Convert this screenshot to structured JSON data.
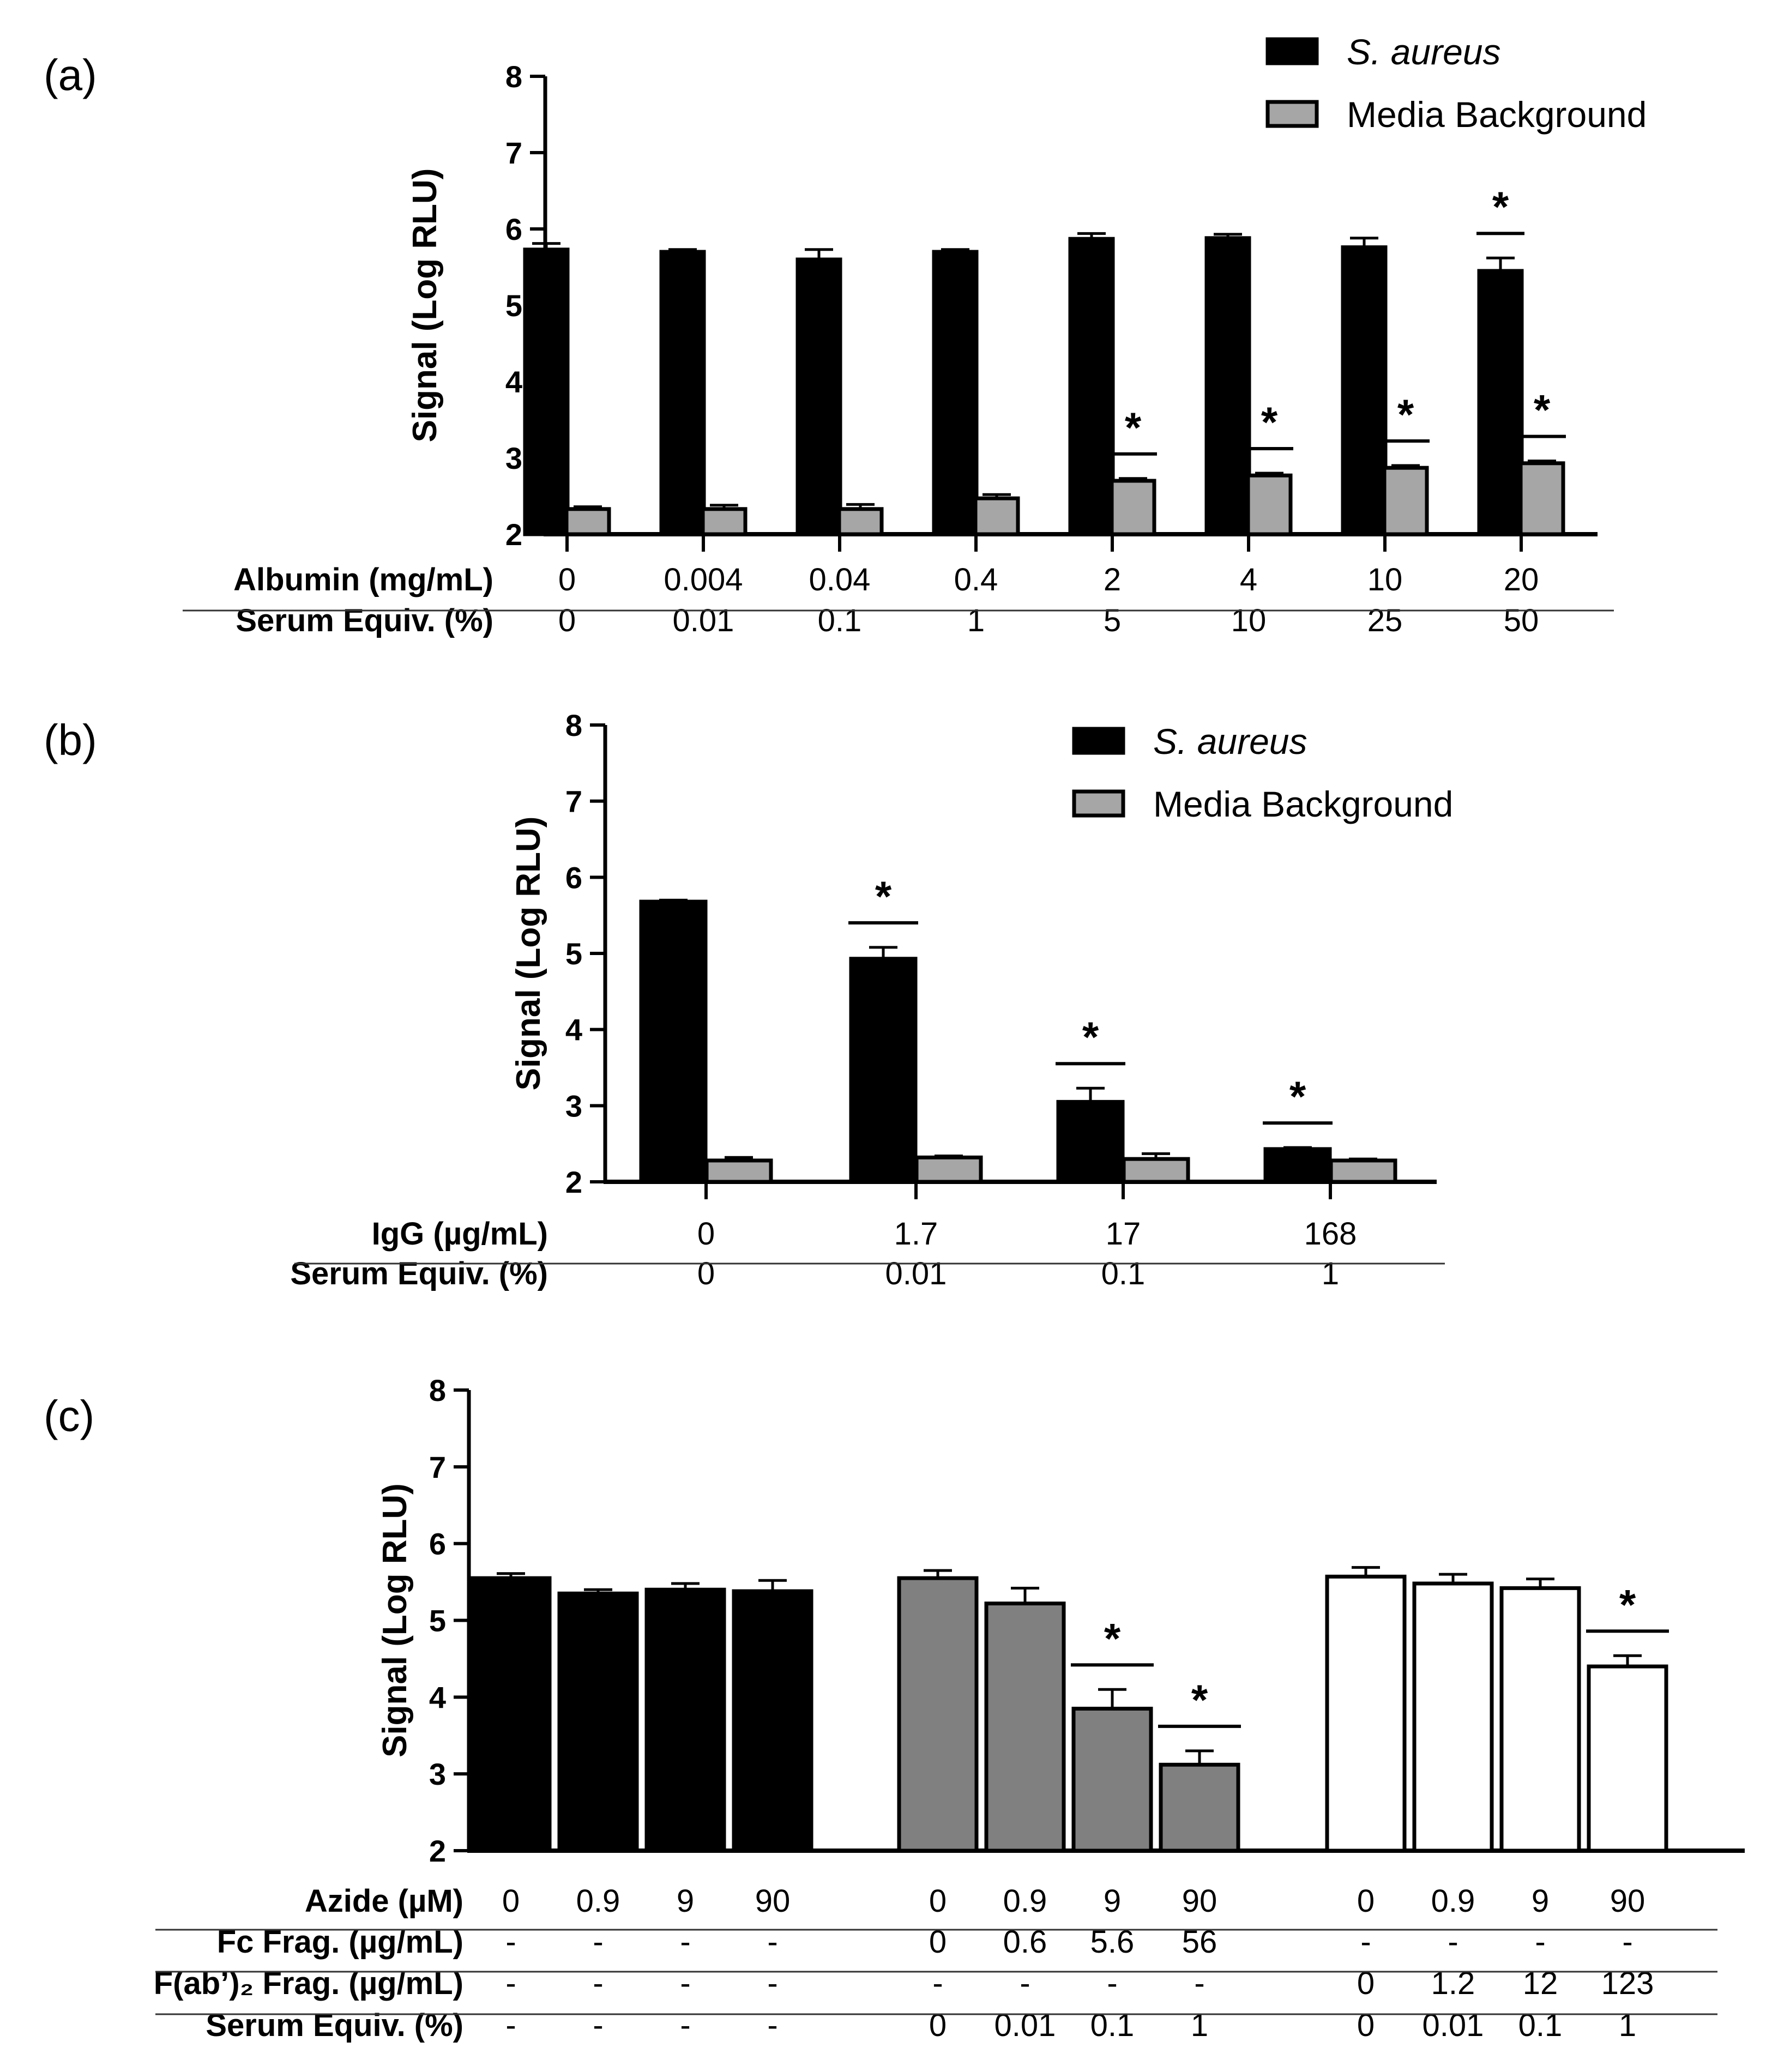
{
  "chart_data": [
    {
      "panel": "(a)",
      "type": "bar",
      "ylabel": "Signal (Log RLU)",
      "ylim": [
        2,
        8
      ],
      "yticks": [
        2,
        3,
        4,
        5,
        6,
        7,
        8
      ],
      "categories": [
        "0",
        "0.004",
        "0.04",
        "0.4",
        "2",
        "4",
        "10",
        "20"
      ],
      "series": [
        {
          "name": "S. aureus",
          "color": "#000000",
          "values": [
            5.73,
            5.7,
            5.6,
            5.7,
            5.87,
            5.88,
            5.76,
            5.45
          ],
          "errors": [
            0.08,
            0.03,
            0.13,
            0.03,
            0.07,
            0.05,
            0.12,
            0.17
          ],
          "significant": [
            false,
            false,
            false,
            false,
            false,
            false,
            false,
            true
          ]
        },
        {
          "name": "Media Background",
          "color": "#a6a6a6",
          "values": [
            2.33,
            2.33,
            2.33,
            2.47,
            2.7,
            2.77,
            2.87,
            2.93
          ],
          "errors": [
            0.03,
            0.05,
            0.06,
            0.05,
            0.03,
            0.03,
            0.03,
            0.03
          ],
          "significant": [
            false,
            false,
            false,
            false,
            true,
            true,
            true,
            true
          ]
        }
      ],
      "legend": [
        {
          "label": "S. aureus",
          "italic": true,
          "color": "#000000"
        },
        {
          "label": "Media Background",
          "italic": false,
          "color": "#a6a6a6"
        }
      ],
      "table": [
        {
          "label": "Albumin (mg/mL)",
          "values": [
            "0",
            "0.004",
            "0.04",
            "0.4",
            "2",
            "4",
            "10",
            "20"
          ]
        },
        {
          "label": "Serum Equiv. (%)",
          "values": [
            "0",
            "0.01",
            "0.1",
            "1",
            "5",
            "10",
            "25",
            "50"
          ]
        }
      ]
    },
    {
      "panel": "(b)",
      "type": "bar",
      "ylabel": "Signal (Log RLU)",
      "ylim": [
        2,
        8
      ],
      "yticks": [
        2,
        3,
        4,
        5,
        6,
        7,
        8
      ],
      "categories": [
        "0",
        "1.7",
        "17",
        "168"
      ],
      "series": [
        {
          "name": "S. aureus",
          "color": "#000000",
          "values": [
            5.68,
            4.93,
            3.05,
            2.43
          ],
          "errors": [
            0.02,
            0.15,
            0.18,
            0.02
          ],
          "significant": [
            false,
            true,
            true,
            true
          ]
        },
        {
          "name": "Media Background",
          "color": "#a6a6a6",
          "values": [
            2.28,
            2.32,
            2.3,
            2.28
          ],
          "errors": [
            0.04,
            0.02,
            0.07,
            0.02
          ],
          "significant": [
            false,
            false,
            false,
            false
          ]
        }
      ],
      "legend": [
        {
          "label": "S. aureus",
          "italic": true,
          "color": "#000000"
        },
        {
          "label": "Media Background",
          "italic": false,
          "color": "#a6a6a6"
        }
      ],
      "table": [
        {
          "label": "IgG (µg/mL)",
          "values": [
            "0",
            "1.7",
            "17",
            "168"
          ]
        },
        {
          "label": "Serum Equiv. (%)",
          "values": [
            "0",
            "0.01",
            "0.1",
            "1"
          ]
        }
      ]
    },
    {
      "panel": "(c)",
      "type": "bar",
      "ylabel": "Signal (Log RLU)",
      "ylim": [
        2,
        8
      ],
      "yticks": [
        2,
        3,
        4,
        5,
        6,
        7,
        8
      ],
      "groups": [
        {
          "name": "Azide",
          "color": "#000000",
          "values": [
            5.55,
            5.35,
            5.4,
            5.38
          ],
          "errors": [
            0.06,
            0.05,
            0.08,
            0.14
          ],
          "significant": [
            false,
            false,
            false,
            false
          ]
        },
        {
          "name": "Fc Frag.",
          "color": "#808080",
          "values": [
            5.55,
            5.22,
            3.85,
            3.12
          ],
          "errors": [
            0.1,
            0.2,
            0.25,
            0.18
          ],
          "significant": [
            false,
            false,
            true,
            true
          ]
        },
        {
          "name": "F(ab')2 Frag.",
          "color": "#ffffff",
          "values": [
            5.57,
            5.48,
            5.42,
            4.4
          ],
          "errors": [
            0.12,
            0.12,
            0.12,
            0.14
          ],
          "significant": [
            false,
            false,
            false,
            true
          ]
        }
      ],
      "table": [
        {
          "label": "Azide (µM)",
          "values": [
            "0",
            "0.9",
            "9",
            "90",
            "0",
            "0.9",
            "9",
            "90",
            "0",
            "0.9",
            "9",
            "90"
          ]
        },
        {
          "label": "Fc Frag. (µg/mL)",
          "values": [
            "-",
            "-",
            "-",
            "-",
            "0",
            "0.6",
            "5.6",
            "56",
            "-",
            "-",
            "-",
            "-"
          ]
        },
        {
          "label": "F(ab’)₂ Frag. (µg/mL)",
          "values": [
            "-",
            "-",
            "-",
            "-",
            "-",
            "-",
            "-",
            "-",
            "0",
            "1.2",
            "12",
            "123"
          ]
        },
        {
          "label": "Serum Equiv. (%)",
          "values": [
            "-",
            "-",
            "-",
            "-",
            "0",
            "0.01",
            "0.1",
            "1",
            "0",
            "0.01",
            "0.1",
            "1"
          ]
        }
      ]
    }
  ]
}
